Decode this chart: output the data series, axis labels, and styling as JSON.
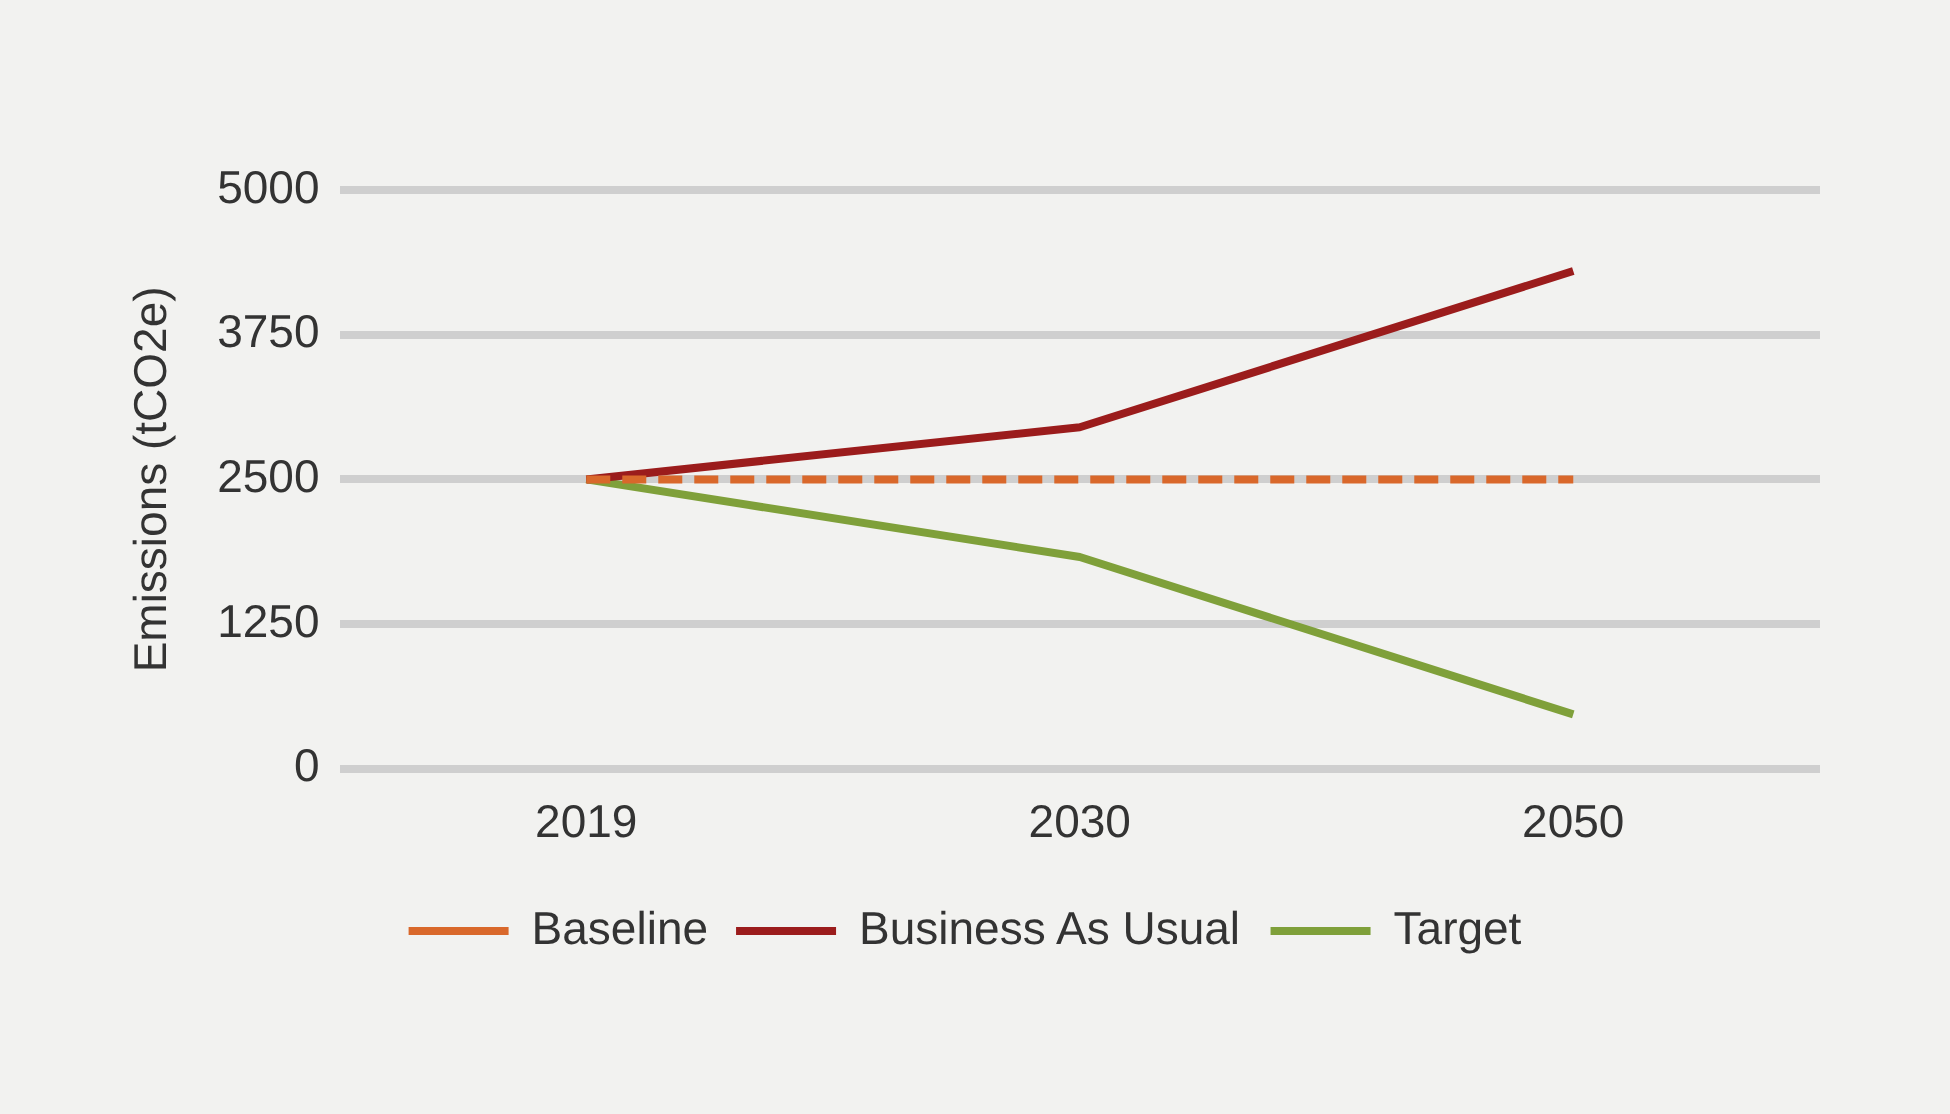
{
  "chart_data": {
    "type": "line",
    "ylabel": "Emissions (tCO2e)",
    "categories": [
      "2019",
      "2030",
      "2050"
    ],
    "series": [
      {
        "name": "Baseline",
        "color": "#d9682b",
        "values": [
          2500,
          2500,
          2500
        ],
        "line_style": "dashed"
      },
      {
        "name": "Business As Usual",
        "color": "#9b1c1c",
        "values": [
          2500,
          2950,
          4300
        ]
      },
      {
        "name": "Target",
        "color": "#7fa03a",
        "values": [
          2500,
          1830,
          470
        ]
      }
    ],
    "ylim": [
      0,
      5000
    ],
    "yticks": [
      0,
      1250,
      2500,
      3750,
      5000
    ],
    "grid": "y",
    "legend": "bottom",
    "marker": "none"
  }
}
